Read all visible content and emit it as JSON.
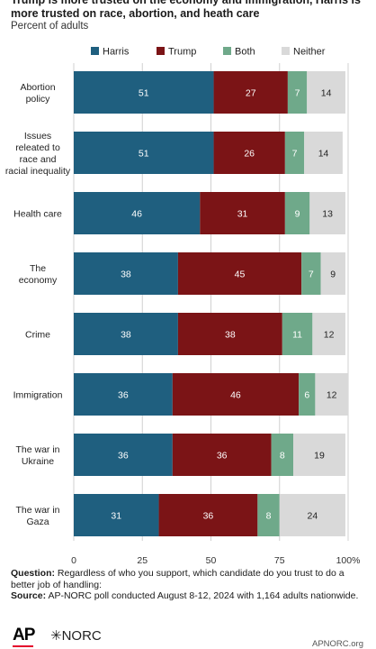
{
  "header": {
    "title": "Trump is more trusted on the economy and immigration, Harris is more trusted on race, abortion, and heath care",
    "subtitle": "Percent of adults"
  },
  "chart_data": {
    "type": "bar",
    "orientation": "horizontal",
    "stacked": true,
    "categories": [
      "Abortion policy",
      "Issues releated to race and racial inequality",
      "Health care",
      "The economy",
      "Crime",
      "Immigration",
      "The war in Ukraine",
      "The war in Gaza"
    ],
    "series": [
      {
        "name": "Harris",
        "color": "#1f5f7f",
        "values": [
          51,
          51,
          46,
          38,
          38,
          36,
          36,
          31
        ]
      },
      {
        "name": "Trump",
        "color": "#7b1416",
        "values": [
          27,
          26,
          31,
          45,
          38,
          46,
          36,
          36
        ]
      },
      {
        "name": "Both",
        "color": "#6fa98a",
        "values": [
          7,
          7,
          9,
          7,
          11,
          6,
          8,
          8
        ]
      },
      {
        "name": "Neither",
        "color": "#d9d9d9",
        "values": [
          14,
          14,
          13,
          9,
          12,
          12,
          19,
          24
        ]
      }
    ],
    "xlim": [
      0,
      100
    ],
    "x_ticks": [
      "0",
      "25",
      "50",
      "75",
      "100%"
    ],
    "legend_position": "top",
    "grid": true
  },
  "notes": {
    "question_label": "Question:",
    "question_text": "Regardless of who you support, which candidate do you trust to do a better job of handling:",
    "source_label": "Source:",
    "source_text": "AP-NORC poll conducted August 8-12, 2024 with 1,164 adults nationwide."
  },
  "footer": {
    "ap_logo": "AP",
    "norc_logo": "✳NORC",
    "site": "APNORC.org"
  }
}
